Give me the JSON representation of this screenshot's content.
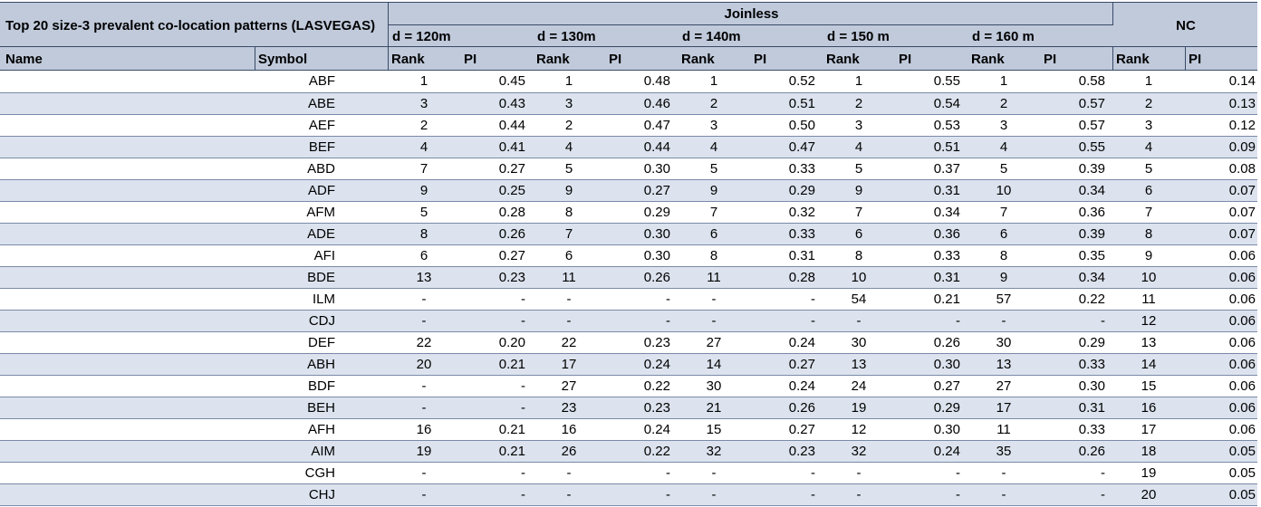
{
  "table": {
    "caption": "Top 20 size-3 prevalent co-location patterns (LASVEGAS)",
    "group_joinless": "Joinless",
    "group_nc": "NC",
    "distances": [
      "d = 120m",
      "d = 130m",
      "d = 140m",
      "d = 150 m",
      "d = 160 m"
    ],
    "col_name": "Name",
    "col_symbol": "Symbol",
    "col_rank": "Rank",
    "col_pi": "PI",
    "rows": [
      {
        "name": "",
        "symbol": "ABF",
        "cells": [
          "1",
          "0.45",
          "1",
          "0.48",
          "1",
          "0.52",
          "1",
          "0.55",
          "1",
          "0.58",
          "1",
          "0.14"
        ]
      },
      {
        "name": "",
        "symbol": "ABE",
        "cells": [
          "3",
          "0.43",
          "3",
          "0.46",
          "2",
          "0.51",
          "2",
          "0.54",
          "2",
          "0.57",
          "2",
          "0.13"
        ]
      },
      {
        "name": "",
        "symbol": "AEF",
        "cells": [
          "2",
          "0.44",
          "2",
          "0.47",
          "3",
          "0.50",
          "3",
          "0.53",
          "3",
          "0.57",
          "3",
          "0.12"
        ]
      },
      {
        "name": "",
        "symbol": "BEF",
        "cells": [
          "4",
          "0.41",
          "4",
          "0.44",
          "4",
          "0.47",
          "4",
          "0.51",
          "4",
          "0.55",
          "4",
          "0.09"
        ]
      },
      {
        "name": "",
        "symbol": "ABD",
        "cells": [
          "7",
          "0.27",
          "5",
          "0.30",
          "5",
          "0.33",
          "5",
          "0.37",
          "5",
          "0.39",
          "5",
          "0.08"
        ]
      },
      {
        "name": "",
        "symbol": "ADF",
        "cells": [
          "9",
          "0.25",
          "9",
          "0.27",
          "9",
          "0.29",
          "9",
          "0.31",
          "10",
          "0.34",
          "6",
          "0.07"
        ]
      },
      {
        "name": "",
        "symbol": "AFM",
        "cells": [
          "5",
          "0.28",
          "8",
          "0.29",
          "7",
          "0.32",
          "7",
          "0.34",
          "7",
          "0.36",
          "7",
          "0.07"
        ]
      },
      {
        "name": "",
        "symbol": "ADE",
        "cells": [
          "8",
          "0.26",
          "7",
          "0.30",
          "6",
          "0.33",
          "6",
          "0.36",
          "6",
          "0.39",
          "8",
          "0.07"
        ]
      },
      {
        "name": "",
        "symbol": "AFI",
        "cells": [
          "6",
          "0.27",
          "6",
          "0.30",
          "8",
          "0.31",
          "8",
          "0.33",
          "8",
          "0.35",
          "9",
          "0.06"
        ]
      },
      {
        "name": "",
        "symbol": "BDE",
        "cells": [
          "13",
          "0.23",
          "11",
          "0.26",
          "11",
          "0.28",
          "10",
          "0.31",
          "9",
          "0.34",
          "10",
          "0.06"
        ]
      },
      {
        "name": "",
        "symbol": "ILM",
        "cells": [
          "-",
          "-",
          "-",
          "-",
          "-",
          "-",
          "54",
          "0.21",
          "57",
          "0.22",
          "11",
          "0.06"
        ]
      },
      {
        "name": "",
        "symbol": "CDJ",
        "cells": [
          "-",
          "-",
          "-",
          "-",
          "-",
          "-",
          "-",
          "-",
          "-",
          "-",
          "12",
          "0.06"
        ]
      },
      {
        "name": "",
        "symbol": "DEF",
        "cells": [
          "22",
          "0.20",
          "22",
          "0.23",
          "27",
          "0.24",
          "30",
          "0.26",
          "30",
          "0.29",
          "13",
          "0.06"
        ]
      },
      {
        "name": "",
        "symbol": "ABH",
        "cells": [
          "20",
          "0.21",
          "17",
          "0.24",
          "14",
          "0.27",
          "13",
          "0.30",
          "13",
          "0.33",
          "14",
          "0.06"
        ]
      },
      {
        "name": "",
        "symbol": "BDF",
        "cells": [
          "-",
          "-",
          "27",
          "0.22",
          "30",
          "0.24",
          "24",
          "0.27",
          "27",
          "0.30",
          "15",
          "0.06"
        ]
      },
      {
        "name": "",
        "symbol": "BEH",
        "cells": [
          "-",
          "-",
          "23",
          "0.23",
          "21",
          "0.26",
          "19",
          "0.29",
          "17",
          "0.31",
          "16",
          "0.06"
        ]
      },
      {
        "name": "",
        "symbol": "AFH",
        "cells": [
          "16",
          "0.21",
          "16",
          "0.24",
          "15",
          "0.27",
          "12",
          "0.30",
          "11",
          "0.33",
          "17",
          "0.06"
        ]
      },
      {
        "name": "",
        "symbol": "AIM",
        "cells": [
          "19",
          "0.21",
          "26",
          "0.22",
          "32",
          "0.23",
          "32",
          "0.24",
          "35",
          "0.26",
          "18",
          "0.05"
        ]
      },
      {
        "name": "",
        "symbol": "CGH",
        "cells": [
          "-",
          "-",
          "-",
          "-",
          "-",
          "-",
          "-",
          "-",
          "-",
          "-",
          "19",
          "0.05"
        ]
      },
      {
        "name": "",
        "symbol": "CHJ",
        "cells": [
          "-",
          "-",
          "-",
          "-",
          "-",
          "-",
          "-",
          "-",
          "-",
          "-",
          "20",
          "0.05"
        ]
      }
    ]
  },
  "colors": {
    "header_fill": "#c0cadb",
    "band_fill": "#dce3ee",
    "border": "#3a4a66"
  }
}
